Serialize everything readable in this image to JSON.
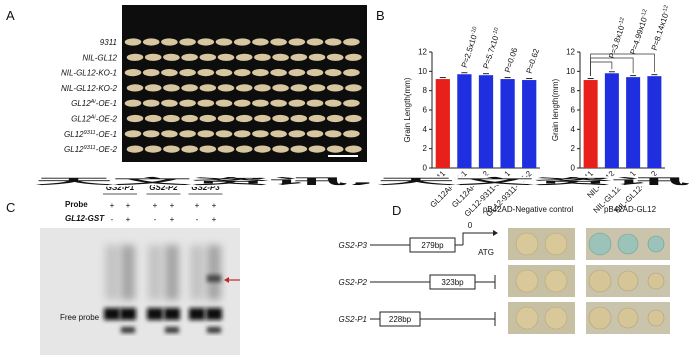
{
  "panel_a": {
    "letter": "A",
    "lines": [
      {
        "main": "9311"
      },
      {
        "main": "NIL-GL12"
      },
      {
        "main": "NIL-GL12-KO-1"
      },
      {
        "main": "NIL-GL12-KO-2"
      },
      {
        "main": "GL12",
        "sup": "Ai",
        "end": "-OE-1"
      },
      {
        "main": "GL12",
        "sup": "Ai",
        "end": "-OE-2"
      },
      {
        "main": "GL12",
        "sup": "9311",
        "end": "-OE-1"
      },
      {
        "main": "GL12",
        "sup": "9311",
        "end": "-OE-2"
      }
    ]
  },
  "chart_data": [
    {
      "type": "bar",
      "letter": "B",
      "ylabel": "Grain Length(mm)",
      "categories": [
        "9311",
        "GL12Ai-OE-1",
        "GL12Ai-OE-2",
        "GL12-9311-OE-1",
        "GL12-9311-OE-2"
      ],
      "values": [
        9.2,
        9.7,
        9.6,
        9.2,
        9.1
      ],
      "colors": [
        "#e8201c",
        "#1f2fe0",
        "#1f2fe0",
        "#1f2fe0",
        "#1f2fe0"
      ],
      "annotations": [
        {
          "text": "P=2.5x10",
          "exp": "-10"
        },
        {
          "text": "P=5.7x10",
          "exp": "-10"
        },
        {
          "text": "P=0.06"
        },
        {
          "text": "P=0.62"
        }
      ],
      "ylim": [
        0,
        12
      ],
      "yticks": [
        0,
        2,
        4,
        6,
        8,
        10,
        12
      ]
    },
    {
      "type": "bar",
      "ylabel": "Grain length(mm)",
      "categories": [
        "9311",
        "NIL-GL12",
        "NIL-GL12-KO-1",
        "NIL-GL12-KO-2"
      ],
      "values": [
        9.1,
        9.8,
        9.4,
        9.5
      ],
      "colors": [
        "#e8201c",
        "#1f2fe0",
        "#1f2fe0",
        "#1f2fe0"
      ],
      "annotations": [
        {
          "text": "P=3.8x10",
          "exp": "-12"
        },
        {
          "text": "P=4.99x10",
          "exp": "-12"
        },
        {
          "text": "P=8.14x10",
          "exp": "-12"
        }
      ],
      "ylim": [
        0,
        12
      ],
      "yticks": [
        0,
        2,
        4,
        6,
        8,
        10,
        12
      ]
    }
  ],
  "panel_c": {
    "letter": "C",
    "columns": [
      "GS2-P1",
      "GS2-P2",
      "GS2-P3"
    ],
    "row_labels": [
      "Probe",
      "GL12-GST"
    ],
    "probe_signs": [
      "+",
      "+",
      "+",
      "+",
      "+",
      "+"
    ],
    "gst_signs": [
      "-",
      "+",
      "-",
      "+",
      "-",
      "+"
    ],
    "free_probe": "Free probe"
  },
  "panel_d": {
    "letter": "D",
    "headers": [
      "pB42AD-Negative control",
      "pB42AD-GL12"
    ],
    "rows": [
      {
        "name": "GS2-P3",
        "length": "279bp"
      },
      {
        "name": "GS2-P2",
        "length": "323bp"
      },
      {
        "name": "GS2-P1",
        "length": "228bp"
      }
    ],
    "start": "0",
    "codon": "ATG"
  },
  "watermark": "天文资讯,天文资讯"
}
